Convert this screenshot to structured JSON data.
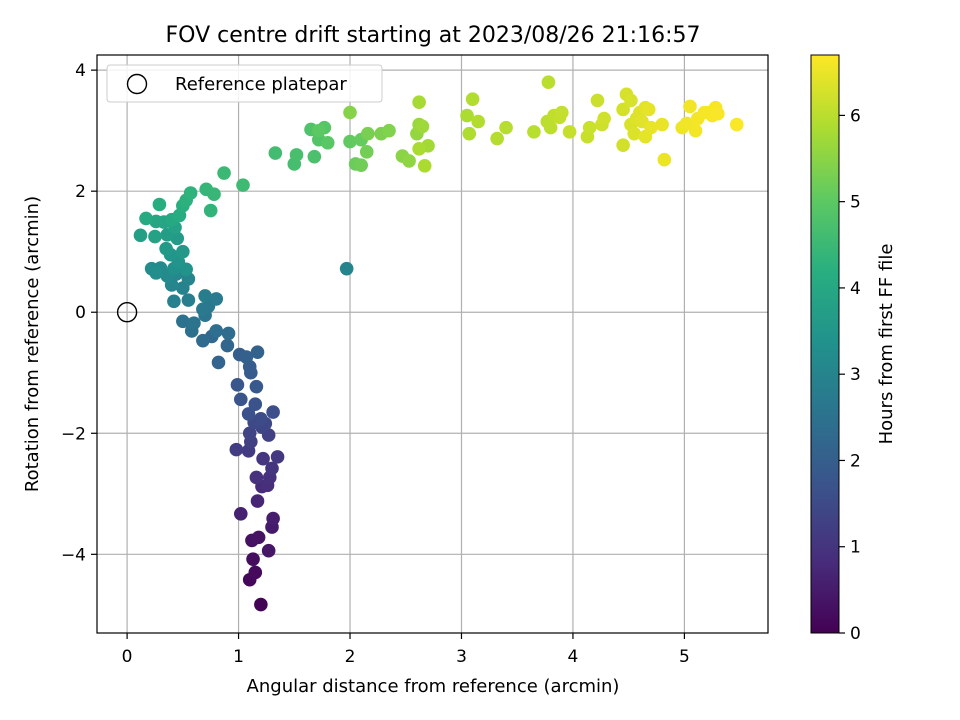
{
  "chart_data": {
    "type": "scatter",
    "title": "FOV centre drift starting at 2023/08/26 21:16:57",
    "xlabel": "Angular distance from reference (arcmin)",
    "ylabel": "Rotation from reference (arcmin)",
    "xlim": [
      -0.27,
      5.75
    ],
    "ylim": [
      -5.3,
      4.25
    ],
    "xticks": [
      0,
      1,
      2,
      3,
      4,
      5
    ],
    "xtick_labels": [
      "0",
      "1",
      "2",
      "3",
      "4",
      "5"
    ],
    "yticks": [
      -4,
      -2,
      0,
      2,
      4
    ],
    "ytick_labels": [
      "−4",
      "−2",
      "0",
      "2",
      "4"
    ],
    "grid": true,
    "colormap": "viridis",
    "colorbar": {
      "label": "Hours from first FF file",
      "range": [
        0,
        6.7
      ],
      "ticks": [
        0,
        1,
        2,
        3,
        4,
        5,
        6
      ],
      "tick_labels": [
        "0",
        "1",
        "2",
        "3",
        "4",
        "5",
        "6"
      ]
    },
    "legend": {
      "position": "top-left",
      "entries": [
        {
          "label": "Reference platepar",
          "marker": "open-circle"
        }
      ]
    },
    "reference_point": {
      "x": 0,
      "y": 0
    },
    "points": [
      [
        1.2,
        -4.83,
        0.05
      ],
      [
        1.1,
        -4.42,
        0.12
      ],
      [
        1.15,
        -4.3,
        0.18
      ],
      [
        1.13,
        -4.08,
        0.22
      ],
      [
        1.12,
        -3.77,
        0.3
      ],
      [
        1.18,
        -3.72,
        0.34
      ],
      [
        1.27,
        -3.94,
        0.4
      ],
      [
        1.3,
        -3.55,
        0.48
      ],
      [
        1.31,
        -3.41,
        0.55
      ],
      [
        1.02,
        -3.33,
        0.62
      ],
      [
        1.17,
        -3.12,
        0.7
      ],
      [
        1.21,
        -2.88,
        0.8
      ],
      [
        1.26,
        -2.86,
        0.85
      ],
      [
        1.28,
        -2.73,
        0.9
      ],
      [
        1.16,
        -2.73,
        0.95
      ],
      [
        1.3,
        -2.58,
        1.0
      ],
      [
        1.22,
        -2.42,
        1.05
      ],
      [
        1.35,
        -2.39,
        1.1
      ],
      [
        1.09,
        -2.29,
        1.15
      ],
      [
        0.98,
        -2.27,
        1.2
      ],
      [
        1.11,
        -2.14,
        1.25
      ],
      [
        1.27,
        -2.03,
        1.3
      ],
      [
        1.1,
        -2.0,
        1.35
      ],
      [
        1.21,
        -1.9,
        1.4
      ],
      [
        1.24,
        -1.84,
        1.45
      ],
      [
        1.14,
        -1.82,
        1.5
      ],
      [
        1.2,
        -1.76,
        1.55
      ],
      [
        1.31,
        -1.65,
        1.6
      ],
      [
        1.09,
        -1.68,
        1.65
      ],
      [
        1.15,
        -1.52,
        1.7
      ],
      [
        1.02,
        -1.44,
        1.75
      ],
      [
        0.99,
        -1.2,
        1.8
      ],
      [
        1.16,
        -1.23,
        1.85
      ],
      [
        1.11,
        -1.0,
        1.9
      ],
      [
        1.1,
        -0.9,
        1.95
      ],
      [
        1.01,
        -0.7,
        2.0
      ],
      [
        1.07,
        -0.74,
        2.05
      ],
      [
        1.17,
        -0.66,
        2.1
      ],
      [
        0.82,
        -0.83,
        2.15
      ],
      [
        0.9,
        -0.55,
        2.2
      ],
      [
        0.76,
        -0.4,
        2.25
      ],
      [
        0.68,
        -0.47,
        2.3
      ],
      [
        0.91,
        -0.35,
        2.35
      ],
      [
        0.8,
        -0.31,
        2.4
      ],
      [
        0.58,
        -0.31,
        2.45
      ],
      [
        0.5,
        -0.15,
        2.5
      ],
      [
        0.6,
        -0.18,
        2.55
      ],
      [
        0.7,
        -0.05,
        2.6
      ],
      [
        0.73,
        0.1,
        2.65
      ],
      [
        0.68,
        0.05,
        2.7
      ],
      [
        0.8,
        0.22,
        2.75
      ],
      [
        0.7,
        0.27,
        2.8
      ],
      [
        0.55,
        0.2,
        2.85
      ],
      [
        0.42,
        0.18,
        2.9
      ],
      [
        0.5,
        0.4,
        2.95
      ],
      [
        0.55,
        0.55,
        3.0
      ],
      [
        0.4,
        0.45,
        3.05
      ],
      [
        0.44,
        0.63,
        3.1
      ],
      [
        0.36,
        0.6,
        3.15
      ],
      [
        0.3,
        0.73,
        3.2
      ],
      [
        0.22,
        0.72,
        3.25
      ],
      [
        0.26,
        0.65,
        3.3
      ],
      [
        0.42,
        0.72,
        3.35
      ],
      [
        0.53,
        0.71,
        3.4
      ],
      [
        0.46,
        0.83,
        3.45
      ],
      [
        0.39,
        0.95,
        3.5
      ],
      [
        0.5,
        1.0,
        3.55
      ],
      [
        0.35,
        1.05,
        3.6
      ],
      [
        0.45,
        1.22,
        3.65
      ],
      [
        0.36,
        1.28,
        3.7
      ],
      [
        0.12,
        1.27,
        3.75
      ],
      [
        0.25,
        1.25,
        3.8
      ],
      [
        0.43,
        1.4,
        3.85
      ],
      [
        0.33,
        1.49,
        3.9
      ],
      [
        0.26,
        1.5,
        3.95
      ],
      [
        0.4,
        1.53,
        4.0
      ],
      [
        0.17,
        1.55,
        4.05
      ],
      [
        0.47,
        1.6,
        4.1
      ],
      [
        0.29,
        1.78,
        4.15
      ],
      [
        0.5,
        1.76,
        4.2
      ],
      [
        0.53,
        1.85,
        4.25
      ],
      [
        0.57,
        1.97,
        4.3
      ],
      [
        0.75,
        1.68,
        4.35
      ],
      [
        0.71,
        2.03,
        4.4
      ],
      [
        0.78,
        1.95,
        4.45
      ],
      [
        0.87,
        2.3,
        4.5
      ],
      [
        1.04,
        2.1,
        4.55
      ],
      [
        1.97,
        0.72,
        3.0
      ],
      [
        1.33,
        2.63,
        4.6
      ],
      [
        1.5,
        2.45,
        4.65
      ],
      [
        1.52,
        2.6,
        4.7
      ],
      [
        1.68,
        2.57,
        4.75
      ],
      [
        1.65,
        3.02,
        4.8
      ],
      [
        1.72,
        2.85,
        4.85
      ],
      [
        1.77,
        3.05,
        4.9
      ],
      [
        1.8,
        2.8,
        4.95
      ],
      [
        1.72,
        3.0,
        5.0
      ],
      [
        2.0,
        2.82,
        5.05
      ],
      [
        2.1,
        2.85,
        5.1
      ],
      [
        2.05,
        2.45,
        5.15
      ],
      [
        2.1,
        2.43,
        5.2
      ],
      [
        2.15,
        2.65,
        5.25
      ],
      [
        2.16,
        2.95,
        5.3
      ],
      [
        2.28,
        2.95,
        5.35
      ],
      [
        2.35,
        3.0,
        5.4
      ],
      [
        2.0,
        3.3,
        5.45
      ],
      [
        2.47,
        2.58,
        5.5
      ],
      [
        2.53,
        2.5,
        5.55
      ],
      [
        2.6,
        2.95,
        5.6
      ],
      [
        2.62,
        3.1,
        5.65
      ],
      [
        2.65,
        3.07,
        5.7
      ],
      [
        2.7,
        2.75,
        5.75
      ],
      [
        2.62,
        3.47,
        5.8
      ],
      [
        2.62,
        2.7,
        5.82
      ],
      [
        2.67,
        2.42,
        5.84
      ],
      [
        3.05,
        3.25,
        5.86
      ],
      [
        3.07,
        2.95,
        5.88
      ],
      [
        3.1,
        3.52,
        5.9
      ],
      [
        3.15,
        3.15,
        5.92
      ],
      [
        3.32,
        2.87,
        5.94
      ],
      [
        3.4,
        3.05,
        5.96
      ],
      [
        3.65,
        2.98,
        5.98
      ],
      [
        3.78,
        3.8,
        6.0
      ],
      [
        3.77,
        3.15,
        6.02
      ],
      [
        3.8,
        3.05,
        6.04
      ],
      [
        3.83,
        3.25,
        6.06
      ],
      [
        3.88,
        3.22,
        6.08
      ],
      [
        3.9,
        3.3,
        6.1
      ],
      [
        3.97,
        2.98,
        6.12
      ],
      [
        4.13,
        2.9,
        6.14
      ],
      [
        4.15,
        3.05,
        6.16
      ],
      [
        4.22,
        3.5,
        6.18
      ],
      [
        4.26,
        3.1,
        6.2
      ],
      [
        4.28,
        3.2,
        6.22
      ],
      [
        4.45,
        2.76,
        6.24
      ],
      [
        4.45,
        3.35,
        6.26
      ],
      [
        4.48,
        3.6,
        6.28
      ],
      [
        4.52,
        3.5,
        6.3
      ],
      [
        4.52,
        3.1,
        6.32
      ],
      [
        4.55,
        2.95,
        6.34
      ],
      [
        4.57,
        3.2,
        6.36
      ],
      [
        4.6,
        3.3,
        6.38
      ],
      [
        4.62,
        3.15,
        6.4
      ],
      [
        4.65,
        3.38,
        6.42
      ],
      [
        4.65,
        2.9,
        6.44
      ],
      [
        4.68,
        3.35,
        6.46
      ],
      [
        4.7,
        3.05,
        6.48
      ],
      [
        4.8,
        3.1,
        6.5
      ],
      [
        4.82,
        2.52,
        6.52
      ],
      [
        4.98,
        3.05,
        6.54
      ],
      [
        5.02,
        3.12,
        6.56
      ],
      [
        5.05,
        3.4,
        6.58
      ],
      [
        5.1,
        3.0,
        6.6
      ],
      [
        5.12,
        3.2,
        6.61
      ],
      [
        5.18,
        3.3,
        6.62
      ],
      [
        5.22,
        3.3,
        6.63
      ],
      [
        5.25,
        3.25,
        6.64
      ],
      [
        5.28,
        3.38,
        6.65
      ],
      [
        5.3,
        3.28,
        6.66
      ],
      [
        5.47,
        3.1,
        6.67
      ]
    ]
  }
}
